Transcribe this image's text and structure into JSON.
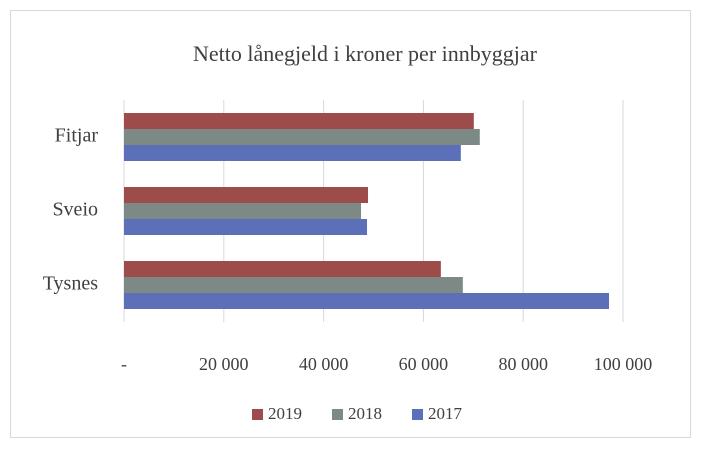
{
  "chart_data": {
    "type": "hbar",
    "title": "Netto lånegjeld i kroner per innbyggjar",
    "categories": [
      "Fitjar",
      "Sveio",
      "Tysnes"
    ],
    "series": [
      {
        "name": "2019",
        "color": "#9e4b4b",
        "values": [
          70100,
          48900,
          63500
        ]
      },
      {
        "name": "2018",
        "color": "#7c8985",
        "values": [
          71300,
          47500,
          67900
        ]
      },
      {
        "name": "2017",
        "color": "#5b70b8",
        "values": [
          67500,
          48700,
          97200
        ]
      }
    ],
    "xlim": [
      0,
      100000
    ],
    "xticks": [
      {
        "value": 0,
        "label": "-"
      },
      {
        "value": 20000,
        "label": "20 000"
      },
      {
        "value": 40000,
        "label": "40 000"
      },
      {
        "value": 60000,
        "label": "60 000"
      },
      {
        "value": 80000,
        "label": "80 000"
      },
      {
        "value": 100000,
        "label": "100 000"
      }
    ],
    "grid": true,
    "legend": "bottom"
  }
}
